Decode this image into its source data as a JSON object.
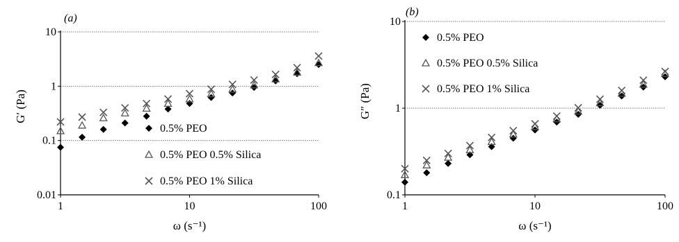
{
  "figure": {
    "panels": [
      {
        "id": "a",
        "tag": "(a)",
        "ylabel": "G′ (Pa)",
        "xlabel": "ω (s⁻¹)",
        "legend": [
          "0.5% PEO",
          "0.5% PEO 0.5% Silica",
          "0.5% PEO 1% Silica"
        ]
      },
      {
        "id": "b",
        "tag": "(b)",
        "ylabel": "G″ (Pa)",
        "xlabel": "ω (s⁻¹)",
        "legend": [
          "0.5% PEO",
          "0.5% PEO 0.5% Silica",
          "0.5% PEO 1% Silica"
        ]
      }
    ]
  },
  "chart_data": [
    {
      "type": "scatter",
      "panel": "(a)",
      "title": "",
      "xlabel": "ω (s⁻¹)",
      "ylabel": "G′ (Pa)",
      "xscale": "log",
      "yscale": "log",
      "xlim": [
        1,
        100
      ],
      "ylim": [
        0.01,
        10
      ],
      "xticks": [
        "1",
        "10",
        "100"
      ],
      "yticks": [
        "0.01",
        "0.1",
        "1",
        "10"
      ],
      "grid": "horizontal",
      "legend_position": "bottom-left",
      "x": [
        1,
        1.47,
        2.15,
        3.16,
        4.64,
        6.81,
        10,
        14.7,
        21.5,
        31.6,
        46.4,
        68.1,
        100
      ],
      "series": [
        {
          "name": "0.5% PEO",
          "marker": "diamond",
          "values": [
            0.075,
            0.115,
            0.16,
            0.21,
            0.28,
            0.38,
            0.48,
            0.62,
            0.75,
            0.95,
            1.25,
            1.7,
            2.5
          ]
        },
        {
          "name": "0.5% PEO 0.5% Silica",
          "marker": "triangle",
          "values": [
            0.15,
            0.19,
            0.26,
            0.32,
            0.39,
            0.48,
            0.58,
            0.72,
            0.88,
            1.05,
            1.35,
            1.8,
            2.7
          ]
        },
        {
          "name": "0.5% PEO 1% Silica",
          "marker": "cross",
          "values": [
            0.22,
            0.27,
            0.33,
            0.4,
            0.48,
            0.58,
            0.73,
            0.88,
            1.08,
            1.3,
            1.65,
            2.2,
            3.6
          ]
        }
      ]
    },
    {
      "type": "scatter",
      "panel": "(b)",
      "title": "",
      "xlabel": "ω (s⁻¹)",
      "ylabel": "G″ (Pa)",
      "xscale": "log",
      "yscale": "log",
      "xlim": [
        1,
        100
      ],
      "ylim": [
        0.1,
        10
      ],
      "xticks": [
        "1",
        "10",
        "100"
      ],
      "yticks": [
        "0.1",
        "1",
        "10"
      ],
      "grid": "horizontal",
      "legend_position": "top-left",
      "x": [
        1,
        1.47,
        2.15,
        3.16,
        4.64,
        6.81,
        10,
        14.7,
        21.5,
        31.6,
        46.4,
        68.1,
        100
      ],
      "series": [
        {
          "name": "0.5% PEO",
          "marker": "diamond",
          "values": [
            0.14,
            0.18,
            0.23,
            0.29,
            0.36,
            0.45,
            0.56,
            0.69,
            0.85,
            1.08,
            1.38,
            1.75,
            2.3
          ]
        },
        {
          "name": "0.5% PEO 0.5% Silica",
          "marker": "triangle",
          "values": [
            0.17,
            0.22,
            0.27,
            0.33,
            0.41,
            0.5,
            0.61,
            0.75,
            0.92,
            1.15,
            1.48,
            1.88,
            2.5
          ]
        },
        {
          "name": "0.5% PEO 1% Silica",
          "marker": "cross",
          "values": [
            0.2,
            0.25,
            0.3,
            0.37,
            0.46,
            0.55,
            0.66,
            0.81,
            1.01,
            1.27,
            1.6,
            2.1,
            2.65
          ]
        }
      ]
    }
  ]
}
